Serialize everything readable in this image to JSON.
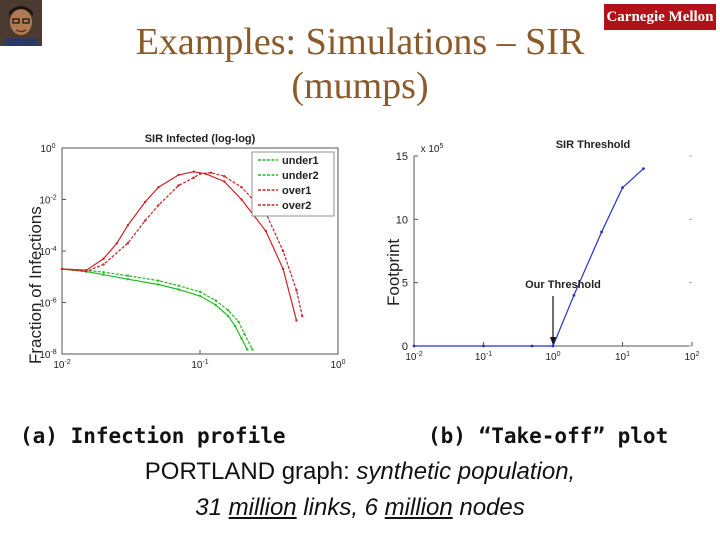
{
  "slide": {
    "title": "Examples: Simulations – SIR (mumps)",
    "logo_text": "Carnegie Mellon",
    "left_ylabel": "Fraction of Infections",
    "right_ylabel": "Footprint",
    "caption_a": "(a) Infection profile",
    "caption_b": "(b) “Take-off” plot",
    "bottom_line1_plain": "PORTLAND graph: ",
    "bottom_line1_italic": "synthetic population,",
    "bottom_line2_a": "31 ",
    "bottom_line2_b": "million",
    "bottom_line2_c": " links, 6 ",
    "bottom_line2_d": "million",
    "bottom_line2_e": " nodes"
  },
  "chart_data": [
    {
      "type": "line",
      "title": "SIR Infected (log-log)",
      "xscale": "log",
      "yscale": "log",
      "xlim": [
        0.01,
        1
      ],
      "ylim": [
        1e-08,
        1
      ],
      "x_tick_labels": [
        "10^-2",
        "10^-1",
        "10^0"
      ],
      "y_tick_labels": [
        "10^0",
        "10^-2",
        "10^-4",
        "10^-6",
        "10^-8"
      ],
      "legend_position": "top-right",
      "colors": {
        "under": "#22bb22",
        "over": "#cc2222"
      },
      "series": [
        {
          "name": "under1",
          "color": "#22bb22",
          "x": [
            0.01,
            0.015,
            0.02,
            0.03,
            0.05,
            0.07,
            0.1,
            0.13,
            0.16,
            0.18,
            0.2,
            0.22
          ],
          "y": [
            2e-05,
            1.6e-05,
            1.2e-05,
            8e-06,
            5e-06,
            3.2e-06,
            1.8e-06,
            8e-07,
            3e-07,
            1.2e-07,
            4e-08,
            1.5e-08
          ]
        },
        {
          "name": "under2",
          "color": "#22bb22",
          "x": [
            0.01,
            0.015,
            0.02,
            0.03,
            0.05,
            0.07,
            0.1,
            0.13,
            0.16,
            0.19,
            0.21,
            0.24
          ],
          "y": [
            2e-05,
            1.8e-05,
            1.5e-05,
            1.1e-05,
            7e-06,
            4.5e-06,
            2.6e-06,
            1.2e-06,
            5e-07,
            1.8e-07,
            6e-08,
            1.5e-08
          ]
        },
        {
          "name": "over1",
          "color": "#cc2222",
          "x": [
            0.01,
            0.015,
            0.02,
            0.025,
            0.03,
            0.04,
            0.05,
            0.07,
            0.09,
            0.11,
            0.15,
            0.2,
            0.3,
            0.4,
            0.5
          ],
          "y": [
            2e-05,
            1.8e-05,
            5e-05,
            0.0002,
            0.001,
            0.008,
            0.03,
            0.09,
            0.12,
            0.1,
            0.05,
            0.01,
            0.0006,
            2e-05,
            2e-07
          ]
        },
        {
          "name": "over2",
          "color": "#cc2222",
          "x": [
            0.01,
            0.015,
            0.02,
            0.03,
            0.04,
            0.05,
            0.07,
            0.09,
            0.1,
            0.12,
            0.15,
            0.2,
            0.3,
            0.4,
            0.5,
            0.55
          ],
          "y": [
            2e-05,
            1.6e-05,
            3e-05,
            0.0002,
            0.0015,
            0.006,
            0.035,
            0.07,
            0.1,
            0.11,
            0.08,
            0.03,
            0.003,
            0.0001,
            3e-06,
            3e-07
          ]
        }
      ]
    },
    {
      "type": "line",
      "title": "SIR Threshold",
      "xscale": "log",
      "xlim": [
        0.01,
        100
      ],
      "ylim": [
        0,
        15
      ],
      "y_multiplier_label": "x 10^5",
      "x_tick_labels": [
        "10^-2",
        "10^-1",
        "10^0",
        "10^1",
        "10^2"
      ],
      "y_tick_labels": [
        "0",
        "5",
        "10",
        "15"
      ],
      "annotation": "Our Threshold",
      "annotation_x": 1,
      "series": [
        {
          "name": "",
          "color": "#2233cc",
          "x": [
            0.01,
            0.1,
            0.5,
            1,
            2,
            5,
            10,
            20
          ],
          "y": [
            0,
            0,
            0,
            0,
            4,
            9,
            12.5,
            14
          ]
        }
      ]
    }
  ]
}
